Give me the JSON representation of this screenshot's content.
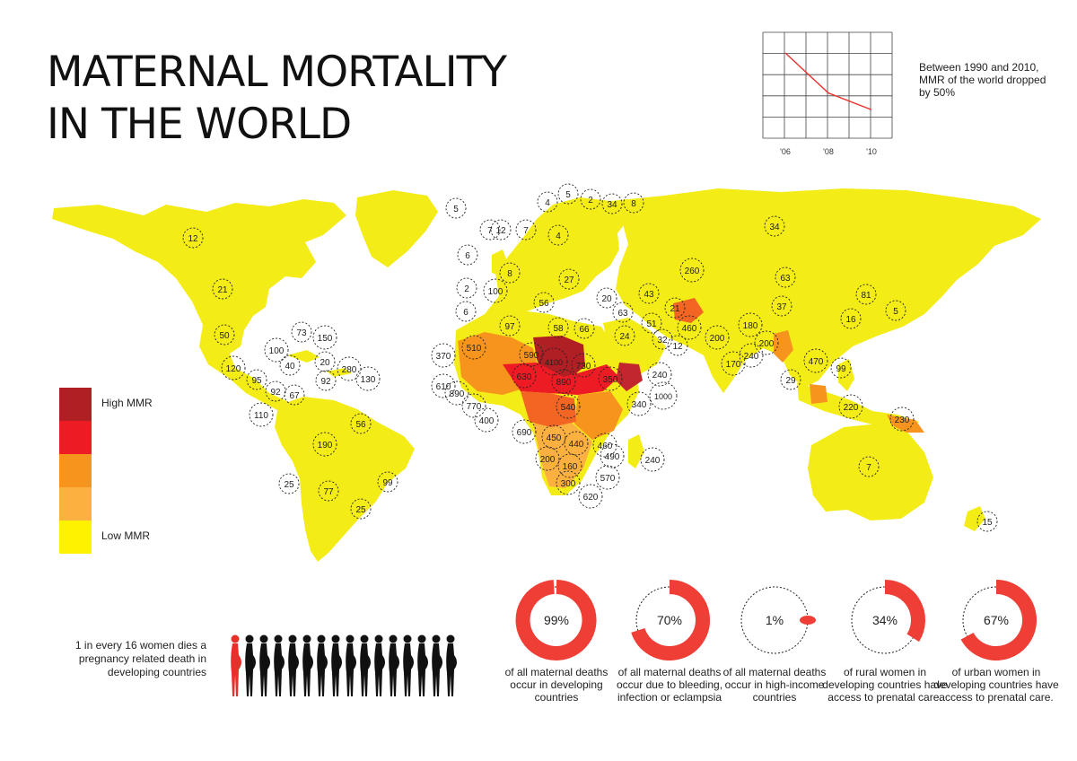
{
  "title": {
    "line1": "MATERNAL MORTALITY",
    "line2": "IN THE WORLD"
  },
  "trend": {
    "note": "Between 1990 and 2010, MMR of the world dropped by 50%",
    "x_ticks": [
      "'06",
      "'08",
      "'10"
    ],
    "values": [
      1.0,
      0.52,
      0.32
    ],
    "line_color": "#e8302a"
  },
  "legend": {
    "high_label": "High MMR",
    "low_label": "Low MMR",
    "colors": [
      "#b01f24",
      "#ed1c24",
      "#f7941d",
      "#fbb040",
      "#fff200"
    ]
  },
  "map": {
    "land_color": "#f4ec17",
    "bubbles": [
      "12",
      "21",
      "50",
      "73",
      "150",
      "100",
      "120",
      "40",
      "95",
      "92",
      "20",
      "92",
      "280",
      "130",
      "110",
      "67",
      "56",
      "190",
      "99",
      "25",
      "77",
      "25",
      "5",
      "12",
      "7",
      "4",
      "5",
      "2",
      "34",
      "8",
      "6",
      "7",
      "4",
      "8",
      "2",
      "6",
      "100",
      "97",
      "58",
      "66",
      "56",
      "27",
      "20",
      "63",
      "43",
      "21",
      "460",
      "260",
      "51",
      "12",
      "32",
      "24",
      "370",
      "610",
      "890",
      "770",
      "400",
      "510",
      "590",
      "4100",
      "730",
      "630",
      "890",
      "350",
      "690",
      "540",
      "450",
      "440",
      "200",
      "160",
      "300",
      "620",
      "570",
      "490",
      "460",
      "340",
      "240",
      "1000",
      "240",
      "34",
      "63",
      "37",
      "81",
      "16",
      "5",
      "200",
      "170",
      "240",
      "200",
      "470",
      "180",
      "99",
      "29",
      "220",
      "230",
      "7",
      "15"
    ]
  },
  "pregnancy": {
    "text": "1 in every 16 women dies a pregnancy related death in developing countries",
    "count": 16,
    "highlight_color": "#e8302a"
  },
  "stats": [
    {
      "pct": "99%",
      "value": 0.99,
      "caption": "of all maternal deaths occur in developing countries"
    },
    {
      "pct": "70%",
      "value": 0.7,
      "caption": "of all maternal deaths occur due to bleeding, infection or eclampsia"
    },
    {
      "pct": "1%",
      "value": 0.01,
      "caption": "of all maternal deaths occur in high-income countries"
    },
    {
      "pct": "34%",
      "value": 0.34,
      "caption": "of rural women in developing countries have access to prenatal care."
    },
    {
      "pct": "67%",
      "value": 0.67,
      "caption": "of urban women in developing countries have access to prenatal care."
    }
  ],
  "accent": "#ef3e36"
}
